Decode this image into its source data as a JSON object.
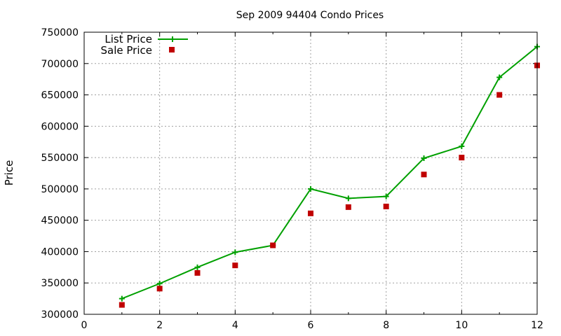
{
  "chart_data": {
    "type": "line",
    "title": "Sep 2009 94404 Condo Prices",
    "xlabel": "",
    "ylabel": "Price",
    "xlim": [
      0,
      12
    ],
    "ylim": [
      300000,
      750000
    ],
    "x_ticks": [
      0,
      2,
      4,
      6,
      8,
      10,
      12
    ],
    "y_ticks": [
      300000,
      350000,
      400000,
      450000,
      500000,
      550000,
      600000,
      650000,
      700000,
      750000
    ],
    "grid": true,
    "legend_position": "top-left",
    "series": [
      {
        "name": "List Price",
        "style": "line-plus",
        "color": "#00a000",
        "x": [
          1,
          2,
          3,
          4,
          5,
          6,
          7,
          8,
          9,
          10,
          11,
          12
        ],
        "values": [
          325000,
          349000,
          375000,
          399000,
          410000,
          500000,
          485000,
          488000,
          549000,
          568000,
          678000,
          727000
        ]
      },
      {
        "name": "Sale Price",
        "style": "square-markers",
        "color": "#c00000",
        "x": [
          1,
          2,
          3,
          4,
          5,
          6,
          7,
          8,
          9,
          10,
          11,
          12
        ],
        "values": [
          315000,
          341000,
          366000,
          378000,
          410000,
          461000,
          471000,
          472000,
          523000,
          550000,
          650000,
          697000
        ]
      }
    ]
  }
}
